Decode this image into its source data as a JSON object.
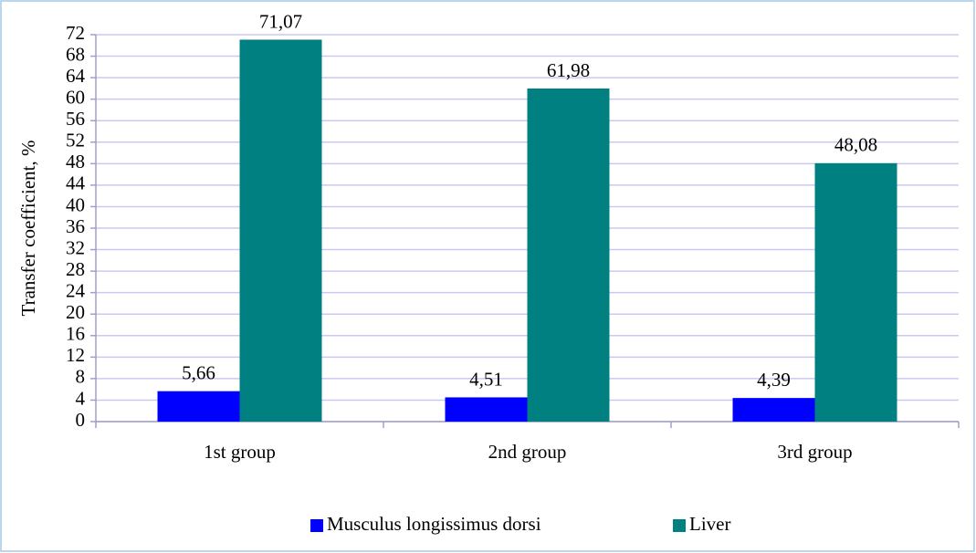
{
  "chart_data": {
    "type": "bar",
    "y_label": "Transfer coefficient, %",
    "categories": [
      "1st group",
      "2nd group",
      "3rd group"
    ],
    "series": [
      {
        "name": "Musculus longissimus dorsi",
        "color": "#0000ff",
        "values": [
          5.66,
          4.51,
          4.39
        ],
        "value_labels": [
          "5,66",
          "4,51",
          "4,39"
        ]
      },
      {
        "name": "Liver",
        "color": "#008080",
        "values": [
          71.07,
          61.98,
          48.08
        ],
        "value_labels": [
          "71,07",
          "61,98",
          "48,08"
        ]
      }
    ],
    "ylim": [
      0,
      72
    ],
    "yticks": [
      0,
      4,
      8,
      12,
      16,
      20,
      24,
      28,
      32,
      36,
      40,
      44,
      48,
      52,
      56,
      60,
      64,
      68,
      72
    ],
    "grid": true,
    "legend": "bottom"
  }
}
